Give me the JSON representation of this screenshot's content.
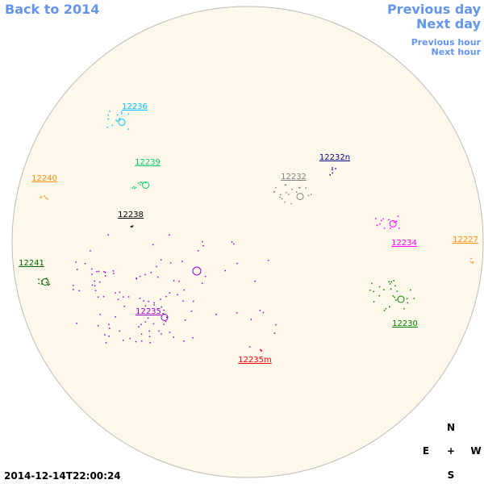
{
  "navigation": {
    "back": "Back to 2014",
    "previous_day": "Previous day",
    "next_day": "Next day",
    "previous_hour": "Previous hour",
    "next_hour": "Next hour"
  },
  "regions": [
    {
      "label": "12236",
      "color": "#00bfff"
    },
    {
      "label": "12239",
      "color": "#00cc66"
    },
    {
      "label": "12240",
      "color": "#ff8c00"
    },
    {
      "label": "12238",
      "color": "#000000"
    },
    {
      "label": "12241",
      "color": "#006400"
    },
    {
      "label": "12235",
      "color": "#9400d3"
    },
    {
      "label": "12235m",
      "color": "#ff0000"
    },
    {
      "label": "12232",
      "color": "#808080"
    },
    {
      "label": "12232n",
      "color": "#00008b"
    },
    {
      "label": "12234",
      "color": "#ff00ff"
    },
    {
      "label": "12227",
      "color": "#ff8c00"
    },
    {
      "label": "12230",
      "color": "#008000"
    }
  ],
  "compass": {
    "north": "N",
    "east": "E",
    "center": "+",
    "west": "W",
    "south": "S"
  },
  "timestamp": "2014-12-14T22:00:24"
}
